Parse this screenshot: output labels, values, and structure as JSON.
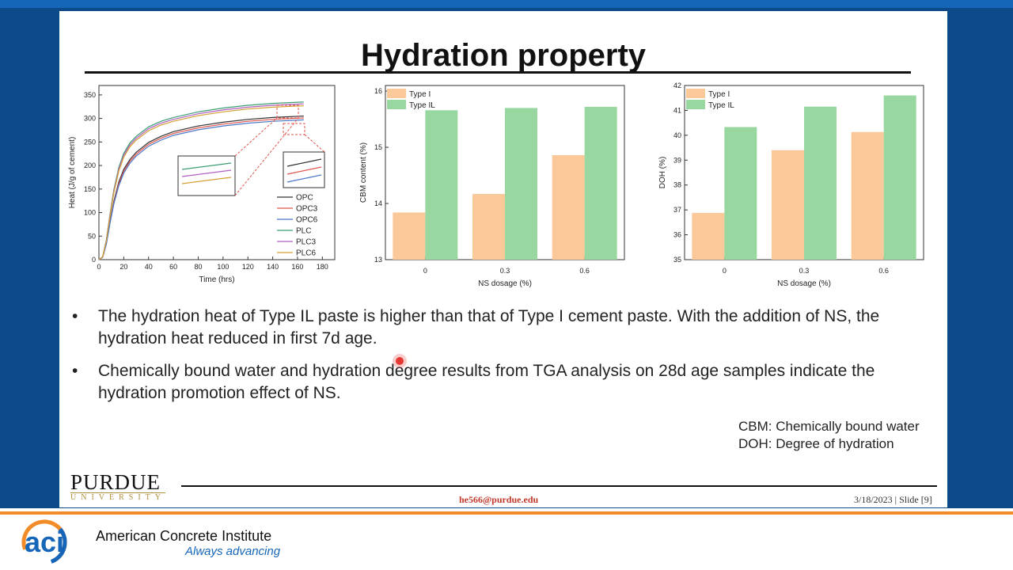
{
  "slide": {
    "title": "Hydration property",
    "bullets": [
      "The hydration heat of Type IL paste is higher than that of Type I cement paste. With the addition of NS, the hydration heat reduced in first 7d age.",
      "Chemically bound water and hydration degree results from TGA analysis on 28d age samples indicate the hydration promotion effect of NS."
    ],
    "bullet_marker": "•",
    "abbreviations": [
      "CBM: Chemically bound water",
      "DOH: Degree of hydration"
    ],
    "footer": {
      "logo_name": "PURDUE",
      "logo_sub": "UNIVERSITY",
      "email": "he566@purdue.edu",
      "slide_info": "3/18/2023 | Slide [9]"
    }
  },
  "brand": {
    "aci_logo": "aci",
    "name": "American Concrete Institute",
    "tagline": "Always advancing",
    "colors": {
      "blue": "#1565b8",
      "navy": "#0d4a8a",
      "orange": "#f28c28"
    }
  },
  "chart_data": [
    {
      "type": "line",
      "xlabel": "Time (hrs)",
      "ylabel": "Heat (J/g of cement)",
      "xlim": [
        0,
        190
      ],
      "ylim": [
        0,
        370
      ],
      "xticks": [
        0,
        20,
        40,
        60,
        80,
        100,
        120,
        140,
        160,
        180
      ],
      "yticks": [
        0,
        50,
        100,
        150,
        200,
        250,
        300,
        350
      ],
      "legend_position": "bottom-right",
      "series": [
        {
          "name": "OPC",
          "color": "#333333",
          "x": [
            0,
            3,
            6,
            9,
            12,
            16,
            20,
            25,
            30,
            40,
            50,
            60,
            80,
            100,
            120,
            140,
            165
          ],
          "y": [
            0,
            5,
            35,
            82,
            124,
            165,
            192,
            213,
            228,
            249,
            262,
            272,
            284,
            292,
            298,
            302,
            305
          ]
        },
        {
          "name": "OPC3",
          "color": "#e0554d",
          "x": [
            0,
            3,
            6,
            9,
            12,
            16,
            20,
            25,
            30,
            40,
            50,
            60,
            80,
            100,
            120,
            140,
            165
          ],
          "y": [
            0,
            5,
            34,
            80,
            121,
            161,
            188,
            209,
            224,
            245,
            258,
            268,
            280,
            288,
            294,
            298,
            301
          ]
        },
        {
          "name": "OPC6",
          "color": "#4a78c8",
          "x": [
            0,
            3,
            6,
            9,
            12,
            16,
            20,
            25,
            30,
            40,
            50,
            60,
            80,
            100,
            120,
            140,
            165
          ],
          "y": [
            0,
            5,
            33,
            78,
            118,
            157,
            184,
            205,
            220,
            241,
            254,
            264,
            276,
            284,
            290,
            294,
            297
          ]
        },
        {
          "name": "PLC",
          "color": "#3a9e72",
          "x": [
            0,
            3,
            6,
            9,
            12,
            16,
            20,
            25,
            30,
            40,
            50,
            60,
            80,
            100,
            120,
            140,
            165
          ],
          "y": [
            0,
            6,
            42,
            98,
            148,
            196,
            226,
            248,
            262,
            282,
            294,
            302,
            314,
            322,
            328,
            332,
            335
          ]
        },
        {
          "name": "PLC3",
          "color": "#b060c0",
          "x": [
            0,
            3,
            6,
            9,
            12,
            16,
            20,
            25,
            30,
            40,
            50,
            60,
            80,
            100,
            120,
            140,
            165
          ],
          "y": [
            0,
            6,
            41,
            96,
            145,
            192,
            222,
            244,
            258,
            278,
            290,
            298,
            310,
            318,
            324,
            328,
            331
          ]
        },
        {
          "name": "PLC6",
          "color": "#d4a030",
          "x": [
            0,
            3,
            6,
            9,
            12,
            16,
            20,
            25,
            30,
            40,
            50,
            60,
            80,
            100,
            120,
            140,
            165
          ],
          "y": [
            0,
            6,
            40,
            94,
            142,
            188,
            218,
            240,
            254,
            274,
            286,
            294,
            306,
            314,
            320,
            324,
            327
          ]
        }
      ]
    },
    {
      "type": "bar",
      "xlabel": "NS dosage (%)",
      "ylabel": "CBM content (%)",
      "categories": [
        "0",
        "0.3",
        "0.6"
      ],
      "ylim": [
        13,
        16.1
      ],
      "yticks": [
        13,
        14,
        15,
        16
      ],
      "legend_position": "top-left",
      "series": [
        {
          "name": "Type I",
          "color": "#fbc89a",
          "values": [
            13.84,
            14.17,
            14.86
          ]
        },
        {
          "name": "Type IL",
          "color": "#98d8a0",
          "values": [
            15.66,
            15.7,
            15.72
          ]
        }
      ]
    },
    {
      "type": "bar",
      "xlabel": "NS dosage (%)",
      "ylabel": "DOH (%)",
      "categories": [
        "0",
        "0.3",
        "0.6"
      ],
      "ylim": [
        35,
        42
      ],
      "yticks": [
        35,
        36,
        37,
        38,
        39,
        40,
        41,
        42
      ],
      "legend_position": "top-left",
      "series": [
        {
          "name": "Type I",
          "color": "#fbc89a",
          "values": [
            36.88,
            39.4,
            40.13
          ]
        },
        {
          "name": "Type IL",
          "color": "#98d8a0",
          "values": [
            40.33,
            41.15,
            41.6
          ]
        }
      ]
    }
  ]
}
